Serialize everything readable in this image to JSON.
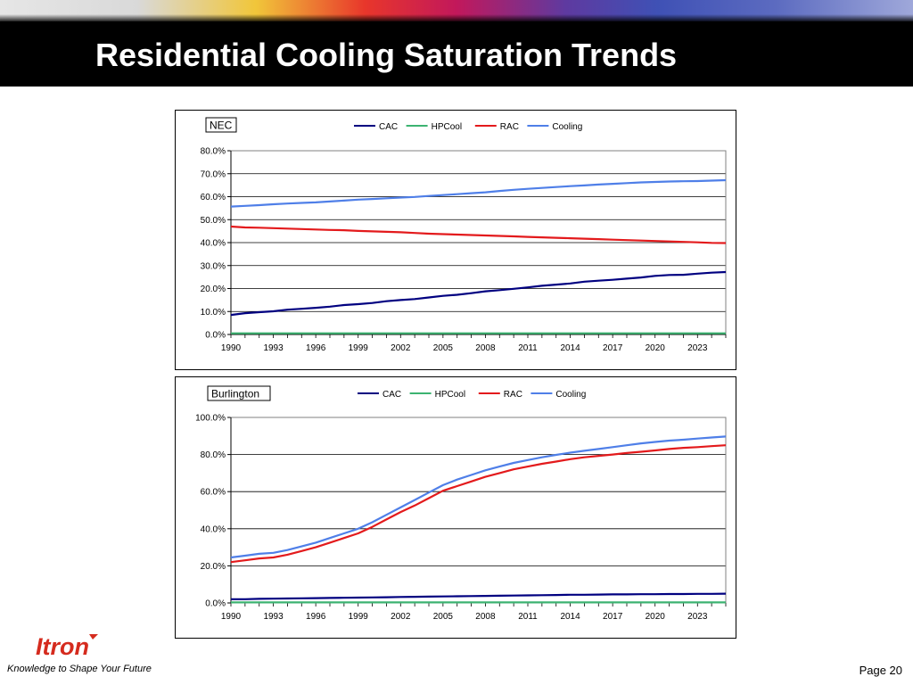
{
  "slide": {
    "title": "Residential Cooling Saturation Trends",
    "page_number": "Page 20",
    "tagline": "Knowledge to Shape Your Future",
    "logo_text": "Itron",
    "colors": {
      "header_bg": "#000000",
      "title_text": "#ffffff",
      "logo_red": "#d52b1e"
    }
  },
  "chart_data": [
    {
      "type": "line",
      "title": "NEC",
      "xlabel": "",
      "ylabel": "",
      "x_ticks": [
        "1990",
        "1993",
        "1996",
        "1999",
        "2002",
        "2005",
        "2008",
        "2011",
        "2014",
        "2017",
        "2020",
        "2023"
      ],
      "y_ticks": [
        "0.0%",
        "10.0%",
        "20.0%",
        "30.0%",
        "40.0%",
        "50.0%",
        "60.0%",
        "70.0%",
        "80.0%"
      ],
      "ylim": [
        0,
        80
      ],
      "xlim": [
        1990,
        2025
      ],
      "grid": "horizontal",
      "legend": "top-center",
      "x": [
        1990,
        1991,
        1992,
        1993,
        1994,
        1995,
        1996,
        1997,
        1998,
        1999,
        2000,
        2001,
        2002,
        2003,
        2004,
        2005,
        2006,
        2007,
        2008,
        2009,
        2010,
        2011,
        2012,
        2013,
        2014,
        2015,
        2016,
        2017,
        2018,
        2019,
        2020,
        2021,
        2022,
        2023,
        2024,
        2025
      ],
      "series": [
        {
          "name": "CAC",
          "color": "#000080",
          "values": [
            8.5,
            9.3,
            9.7,
            10.1,
            10.8,
            11.2,
            11.6,
            12.1,
            12.8,
            13.2,
            13.7,
            14.5,
            15.0,
            15.4,
            16.1,
            16.8,
            17.3,
            18.0,
            18.8,
            19.3,
            19.9,
            20.5,
            21.2,
            21.7,
            22.2,
            23.0,
            23.4,
            23.8,
            24.3,
            24.8,
            25.5,
            25.9,
            26.0,
            26.5,
            26.9,
            27.2
          ]
        },
        {
          "name": "HPCool",
          "color": "#3cb371",
          "values": [
            0.5,
            0.5,
            0.5,
            0.5,
            0.5,
            0.5,
            0.5,
            0.5,
            0.5,
            0.5,
            0.5,
            0.5,
            0.5,
            0.5,
            0.5,
            0.5,
            0.5,
            0.5,
            0.5,
            0.5,
            0.5,
            0.5,
            0.5,
            0.5,
            0.5,
            0.5,
            0.5,
            0.5,
            0.5,
            0.5,
            0.5,
            0.5,
            0.5,
            0.5,
            0.5,
            0.5
          ]
        },
        {
          "name": "RAC",
          "color": "#e31a1c",
          "values": [
            47.0,
            46.6,
            46.5,
            46.3,
            46.1,
            45.9,
            45.7,
            45.5,
            45.4,
            45.1,
            44.9,
            44.7,
            44.5,
            44.2,
            43.9,
            43.7,
            43.5,
            43.3,
            43.1,
            42.9,
            42.7,
            42.5,
            42.3,
            42.1,
            41.9,
            41.7,
            41.5,
            41.3,
            41.1,
            40.9,
            40.7,
            40.5,
            40.3,
            40.1,
            39.9,
            39.8
          ]
        },
        {
          "name": "Cooling",
          "color": "#4f7fe8",
          "values": [
            55.7,
            56.0,
            56.3,
            56.7,
            57.0,
            57.3,
            57.5,
            57.9,
            58.3,
            58.7,
            59.0,
            59.3,
            59.6,
            59.9,
            60.3,
            60.7,
            61.1,
            61.5,
            61.9,
            62.5,
            63.0,
            63.4,
            63.8,
            64.2,
            64.6,
            64.9,
            65.3,
            65.6,
            65.9,
            66.2,
            66.4,
            66.6,
            66.7,
            66.8,
            67.0,
            67.2
          ]
        }
      ]
    },
    {
      "type": "line",
      "title": "Burlington",
      "xlabel": "",
      "ylabel": "",
      "x_ticks": [
        "1990",
        "1993",
        "1996",
        "1999",
        "2002",
        "2005",
        "2008",
        "2011",
        "2014",
        "2017",
        "2020",
        "2023"
      ],
      "y_ticks": [
        "0.0%",
        "20.0%",
        "40.0%",
        "60.0%",
        "80.0%",
        "100.0%"
      ],
      "ylim": [
        0,
        100
      ],
      "xlim": [
        1990,
        2025
      ],
      "grid": "horizontal",
      "legend": "top-center",
      "x": [
        1990,
        1991,
        1992,
        1993,
        1994,
        1995,
        1996,
        1997,
        1998,
        1999,
        2000,
        2001,
        2002,
        2003,
        2004,
        2005,
        2006,
        2007,
        2008,
        2009,
        2010,
        2011,
        2012,
        2013,
        2014,
        2015,
        2016,
        2017,
        2018,
        2019,
        2020,
        2021,
        2022,
        2023,
        2024,
        2025
      ],
      "series": [
        {
          "name": "CAC",
          "color": "#000080",
          "values": [
            2.0,
            2.0,
            2.2,
            2.3,
            2.4,
            2.5,
            2.6,
            2.7,
            2.8,
            2.9,
            3.0,
            3.1,
            3.2,
            3.3,
            3.4,
            3.5,
            3.6,
            3.7,
            3.8,
            3.9,
            4.0,
            4.1,
            4.2,
            4.3,
            4.4,
            4.4,
            4.5,
            4.6,
            4.6,
            4.7,
            4.7,
            4.8,
            4.8,
            4.9,
            4.9,
            5.0
          ]
        },
        {
          "name": "HPCool",
          "color": "#3cb371",
          "values": [
            0.3,
            0.3,
            0.3,
            0.3,
            0.3,
            0.3,
            0.3,
            0.3,
            0.3,
            0.3,
            0.3,
            0.3,
            0.3,
            0.3,
            0.3,
            0.3,
            0.3,
            0.3,
            0.3,
            0.3,
            0.3,
            0.3,
            0.3,
            0.3,
            0.3,
            0.3,
            0.3,
            0.3,
            0.3,
            0.3,
            0.3,
            0.3,
            0.3,
            0.3,
            0.3,
            0.3
          ]
        },
        {
          "name": "RAC",
          "color": "#e31a1c",
          "values": [
            22.0,
            23.0,
            24.0,
            24.5,
            26.0,
            28.0,
            30.0,
            32.5,
            35.0,
            37.5,
            41.0,
            45.0,
            49.0,
            52.5,
            56.5,
            60.5,
            63.0,
            65.5,
            68.0,
            70.0,
            72.0,
            73.5,
            75.0,
            76.2,
            77.5,
            78.5,
            79.3,
            80.0,
            80.8,
            81.5,
            82.2,
            83.0,
            83.6,
            84.0,
            84.5,
            85.0
          ]
        },
        {
          "name": "Cooling",
          "color": "#4f7fe8",
          "values": [
            24.5,
            25.5,
            26.5,
            27.0,
            28.5,
            30.5,
            32.5,
            35.0,
            37.5,
            40.0,
            43.5,
            47.5,
            51.5,
            55.5,
            59.5,
            63.5,
            66.5,
            69.0,
            71.5,
            73.5,
            75.5,
            77.0,
            78.5,
            79.8,
            81.0,
            82.0,
            83.0,
            84.0,
            85.0,
            86.0,
            86.8,
            87.5,
            88.0,
            88.6,
            89.2,
            89.7
          ]
        }
      ]
    }
  ]
}
